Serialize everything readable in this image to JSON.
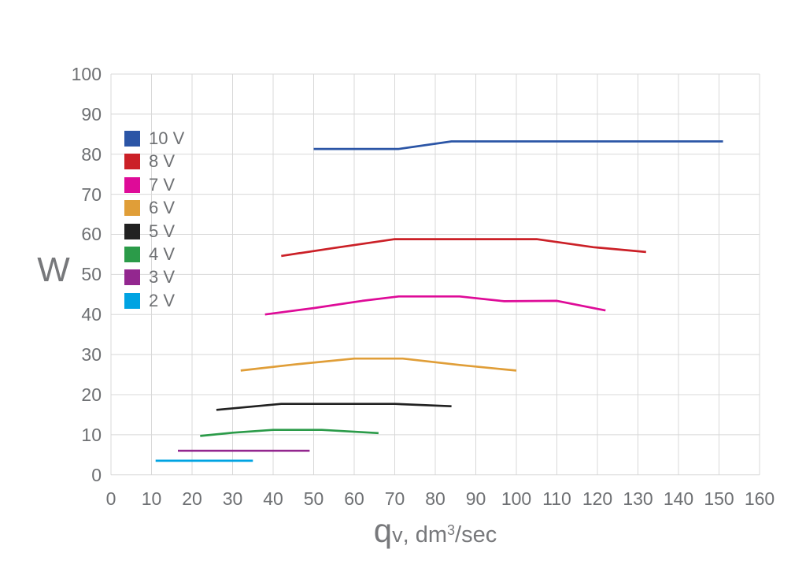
{
  "figure": {
    "background": "#ffffff",
    "text_color": "#6e7073",
    "grid_color": "#d8d8d8",
    "y_axis_title": "W",
    "x_axis_title": {
      "main": "q",
      "sub": "v",
      "mid": ", dm",
      "sup": "3",
      "end": "/sec"
    }
  },
  "chart_data": {
    "type": "line",
    "title": "",
    "xlabel": "qv, dm³/sec",
    "ylabel": "W",
    "xlim": [
      0,
      160
    ],
    "ylim": [
      0,
      100
    ],
    "x_ticks": [
      0,
      10,
      20,
      30,
      40,
      50,
      60,
      70,
      80,
      90,
      100,
      110,
      120,
      130,
      140,
      150,
      160
    ],
    "y_ticks": [
      0,
      10,
      20,
      30,
      40,
      50,
      60,
      70,
      80,
      90,
      100
    ],
    "grid": true,
    "legend_position": "upper-left-inside",
    "series": [
      {
        "name": "10 V",
        "color": "#2b55a6",
        "points": [
          [
            50,
            81.3
          ],
          [
            71,
            81.3
          ],
          [
            84,
            83.2
          ],
          [
            151,
            83.2
          ]
        ]
      },
      {
        "name": "8 V",
        "color": "#cb2027",
        "points": [
          [
            42,
            54.6
          ],
          [
            55,
            56.6
          ],
          [
            70,
            58.8
          ],
          [
            105,
            58.8
          ],
          [
            119,
            56.8
          ],
          [
            132,
            55.6
          ]
        ]
      },
      {
        "name": "7 V",
        "color": "#de0b98",
        "points": [
          [
            38,
            40
          ],
          [
            50,
            41.6
          ],
          [
            62,
            43.4
          ],
          [
            71,
            44.5
          ],
          [
            86,
            44.5
          ],
          [
            97,
            43.3
          ],
          [
            110,
            43.4
          ],
          [
            122,
            41
          ]
        ]
      },
      {
        "name": "6 V",
        "color": "#e09e38",
        "points": [
          [
            32,
            26
          ],
          [
            45,
            27.5
          ],
          [
            60,
            29
          ],
          [
            72,
            29
          ],
          [
            86,
            27.4
          ],
          [
            100,
            26
          ]
        ]
      },
      {
        "name": "5 V",
        "color": "#212121",
        "points": [
          [
            26,
            16.2
          ],
          [
            42,
            17.7
          ],
          [
            70,
            17.7
          ],
          [
            84,
            17.1
          ]
        ]
      },
      {
        "name": "4 V",
        "color": "#2b9b49",
        "points": [
          [
            22,
            9.7
          ],
          [
            30,
            10.5
          ],
          [
            40,
            11.2
          ],
          [
            52,
            11.2
          ],
          [
            66,
            10.4
          ]
        ]
      },
      {
        "name": "3 V",
        "color": "#93278f",
        "points": [
          [
            16.5,
            6
          ],
          [
            49,
            6
          ]
        ]
      },
      {
        "name": "2 V",
        "color": "#00a3e2",
        "points": [
          [
            11,
            3.5
          ],
          [
            35,
            3.5
          ]
        ]
      }
    ]
  }
}
